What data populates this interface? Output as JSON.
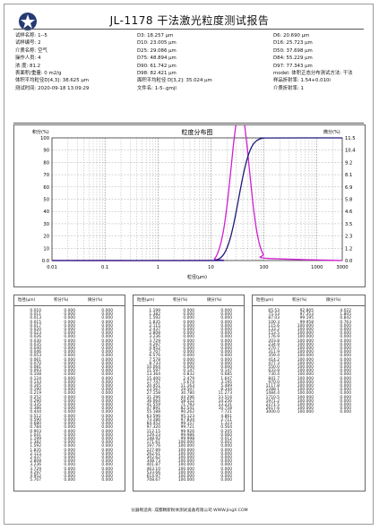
{
  "report": {
    "title": "JL-1178 干法激光粒度测试报告",
    "footer": "仪器制造商: 成都精新粉体测试设备有限公司 WWW.JingX.COM"
  },
  "info": {
    "col1": [
      "试样名称: 1--5",
      "试样编号: 2",
      "介质名称: 空气",
      "操作人员: 4",
      "浓 度: 81.2",
      "表面积/重量: 0 m2/g",
      "体积平均粒径D[4,3]: 38.625 μm",
      "测试时间: 2020-09-18 13:09:29"
    ],
    "col2": [
      "D3: 18.257 μm",
      "D10: 23.005 μm",
      "D25: 29.086 μm",
      "D75: 48.894 μm",
      "D90: 61.742 μm",
      "D98: 82.421 μm",
      "面积平均粒径 D[3,2]: 35.024 μm",
      "文件名: 1-5-.gmjl"
    ],
    "col3": [
      "D6: 20.690 μm",
      "D16: 25.723 μm",
      "D50: 37.698 μm",
      "D84: 55.229 μm",
      "D97: 77.343 μm",
      "model: 体积正态分布测试方法: 干法",
      "样品折射率: 1.54+0.010i",
      "介质折射率: 1"
    ]
  },
  "table_headers": [
    "粒径(μm)",
    "积分(%)",
    "微分(%)"
  ],
  "tables": [
    {
      "size": [
        "0.010",
        "0.011",
        "0.013",
        "0.015",
        "0.017",
        "0.020",
        "0.023",
        "0.026",
        "0.030",
        "0.035",
        "0.040",
        "0.046",
        "0.053",
        "0.061",
        "0.070",
        "0.081",
        "0.093",
        "0.108",
        "0.124",
        "0.143",
        "0.165",
        "0.190",
        "0.219",
        "0.252",
        "0.290",
        "0.335",
        "0.386",
        "0.444",
        "0.512",
        "0.590",
        "0.680",
        "0.784",
        "0.903",
        "1.041",
        "1.199",
        "1.382",
        "1.592",
        "1.835",
        "2.115",
        "2.437",
        "2.808",
        "3.236",
        "3.729",
        "4.297",
        "4.952",
        "5.707"
      ],
      "cum": [
        "0.000",
        "0.000",
        "0.000",
        "0.000",
        "0.000",
        "0.000",
        "0.000",
        "0.000",
        "0.000",
        "0.000",
        "0.000",
        "0.000",
        "0.000",
        "0.000",
        "0.000",
        "0.000",
        "0.000",
        "0.000",
        "0.000",
        "0.000",
        "0.000",
        "0.000",
        "0.000",
        "0.000",
        "0.000",
        "0.000",
        "0.000",
        "0.000",
        "0.000",
        "0.000",
        "0.000",
        "0.000",
        "0.000",
        "0.000",
        "0.000",
        "0.000",
        "0.000",
        "0.000",
        "0.000",
        "0.000",
        "0.000",
        "0.000",
        "0.000",
        "0.000",
        "0.000",
        "0.000"
      ],
      "diff": [
        "0.000",
        "0.000",
        "0.000",
        "0.000",
        "0.000",
        "0.000",
        "0.000",
        "0.000",
        "0.000",
        "0.000",
        "0.000",
        "0.000",
        "0.000",
        "0.000",
        "0.000",
        "0.000",
        "0.000",
        "0.000",
        "0.000",
        "0.000",
        "0.000",
        "0.000",
        "0.000",
        "0.000",
        "0.000",
        "0.000",
        "0.000",
        "0.000",
        "0.000",
        "0.000",
        "0.000",
        "0.000",
        "0.000",
        "0.000",
        "0.000",
        "0.000",
        "0.000",
        "0.000",
        "0.000",
        "0.000",
        "0.000",
        "0.000",
        "0.000",
        "0.000",
        "0.000",
        "0.000"
      ]
    },
    {
      "size": [
        "1.199",
        "1.382",
        "1.592",
        "1.835",
        "2.115",
        "2.437",
        "2.808",
        "3.236",
        "3.729",
        "4.297",
        "4.952",
        "5.707",
        "6.576",
        "7.578",
        "8.733",
        "10.064",
        "11.597",
        "13.364",
        "15.400",
        "17.747",
        "20.451",
        "23.567",
        "27.158",
        "31.296",
        "36.064",
        "41.559",
        "47.891",
        "55.188",
        "63.596",
        "73.286",
        "84.452",
        "97.320",
        "112.15",
        "129.23",
        "148.92",
        "171.61",
        "197.76",
        "227.89",
        "262.61",
        "302.62",
        "348.73",
        "401.87",
        "463.10",
        "533.66",
        "614.97",
        "708.67"
      ],
      "cum": [
        "0.000",
        "0.000",
        "0.000",
        "0.000",
        "0.000",
        "0.000",
        "0.000",
        "0.000",
        "0.000",
        "0.000",
        "0.000",
        "0.000",
        "0.000",
        "0.000",
        "0.000",
        "0.000",
        "0.147",
        "0.832",
        "2.479",
        "5.674",
        "11.163",
        "19.507",
        "30.780",
        "44.296",
        "58.552",
        "71.783",
        "82.541",
        "90.262",
        "95.123",
        "97.834",
        "99.157",
        "99.721",
        "99.926",
        "99.986",
        "99.998",
        "100.000",
        "100.000",
        "100.000",
        "100.000",
        "100.000",
        "100.000",
        "100.000",
        "100.000",
        "100.000",
        "100.000",
        "100.000"
      ],
      "diff": [
        "0.000",
        "0.000",
        "0.000",
        "0.000",
        "0.000",
        "0.000",
        "0.000",
        "0.000",
        "0.000",
        "0.000",
        "0.000",
        "0.000",
        "0.000",
        "0.000",
        "0.000",
        "0.000",
        "0.147",
        "0.685",
        "1.647",
        "3.195",
        "5.489",
        "8.344",
        "11.273",
        "13.516",
        "14.256",
        "13.231",
        "10.758",
        "7.721",
        "4.861",
        "2.711",
        "1.323",
        "0.564",
        "0.205",
        "0.060",
        "0.012",
        "0.002",
        "0.000",
        "0.000",
        "0.000",
        "0.000",
        "0.000",
        "0.000",
        "0.000",
        "0.000",
        "0.000",
        "0.000"
      ]
    },
    {
      "size": [
        "65.53",
        "75.53",
        "87.03",
        "100.3",
        "115.6",
        "133.2",
        "153.5",
        "176.9",
        "203.8",
        "234.9",
        "270.7",
        "311.9",
        "359.4",
        "414.2",
        "477.3",
        "550.0",
        "633.8",
        "730.4",
        "841.7",
        "970.0",
        "1117.8",
        "1288.1",
        "1484.4",
        "1710.5",
        "1971.2",
        "2271.5",
        "2617.6",
        "3000.0"
      ],
      "cum": [
        "92.805",
        "97.353",
        "99.195",
        "99.958",
        "100.000",
        "100.000",
        "100.000",
        "100.000",
        "100.000",
        "100.000",
        "100.000",
        "100.000",
        "100.000",
        "100.000",
        "100.000",
        "100.000",
        "100.000",
        "100.000",
        "100.000",
        "100.000",
        "100.000",
        "100.000",
        "100.000",
        "100.000",
        "100.000",
        "100.000",
        "100.000",
        "100.000"
      ],
      "diff": [
        "4.022",
        "1.805",
        "0.842",
        "0.763",
        "0.000",
        "0.000",
        "0.000",
        "0.000",
        "0.000",
        "0.000",
        "0.000",
        "0.000",
        "0.000",
        "0.000",
        "0.000",
        "0.000",
        "0.000",
        "0.000",
        "0.000",
        "0.000",
        "0.000",
        "0.000",
        "0.000",
        "0.000",
        "0.000",
        "0.000",
        "0.000",
        "0.000"
      ]
    }
  ],
  "chart_data": {
    "type": "line",
    "title": "粒度分布图",
    "xlabel": "粒径(μm)",
    "ylabel_left": "积分(%)",
    "ylabel_right": "微分(%)",
    "xscale": "log",
    "xlim": [
      0.01,
      3000
    ],
    "x_ticks": [
      "0.01",
      "0.1",
      "1",
      "10",
      "100",
      "1000",
      "3000"
    ],
    "ylim_left": [
      0,
      100
    ],
    "y_ticks_left": [
      "100",
      "90",
      "80",
      "70",
      "60",
      "50",
      "40",
      "30",
      "20",
      "10",
      "0.0"
    ],
    "ylim_right": [
      0,
      11.5
    ],
    "y_ticks_right": [
      "11.5",
      "10.4",
      "9.2",
      "8.1",
      "6.9",
      "5.8",
      "4.6",
      "3.5",
      "2.3",
      "1.2",
      "0.0"
    ],
    "series": [
      {
        "name": "积分(%)",
        "color": "#1f1a7a",
        "x": [
          0.01,
          10,
          11.597,
          13.364,
          15.4,
          17.747,
          20.451,
          23.567,
          27.158,
          31.296,
          36.064,
          41.559,
          47.891,
          55.188,
          63.596,
          73.286,
          84.452,
          97.32,
          112.15,
          3000
        ],
        "y": [
          0,
          0,
          0.147,
          0.832,
          2.479,
          5.674,
          11.163,
          19.507,
          30.78,
          44.296,
          58.552,
          71.783,
          82.541,
          90.262,
          95.123,
          97.834,
          99.157,
          99.721,
          99.926,
          100
        ]
      },
      {
        "name": "微分(%)",
        "color": "#d01fd0",
        "x": [
          0.01,
          10,
          11.597,
          13.364,
          15.4,
          17.747,
          20.451,
          23.567,
          27.158,
          31.296,
          36.064,
          41.559,
          47.891,
          55.188,
          63.596,
          73.286,
          84.452,
          97.32,
          112.15,
          3000
        ],
        "y": [
          0,
          0,
          0.147,
          0.685,
          1.647,
          3.195,
          5.489,
          8.344,
          11.273,
          13.516,
          14.256,
          13.231,
          10.758,
          7.721,
          4.861,
          2.711,
          1.323,
          0.564,
          0.205,
          0
        ]
      }
    ]
  }
}
